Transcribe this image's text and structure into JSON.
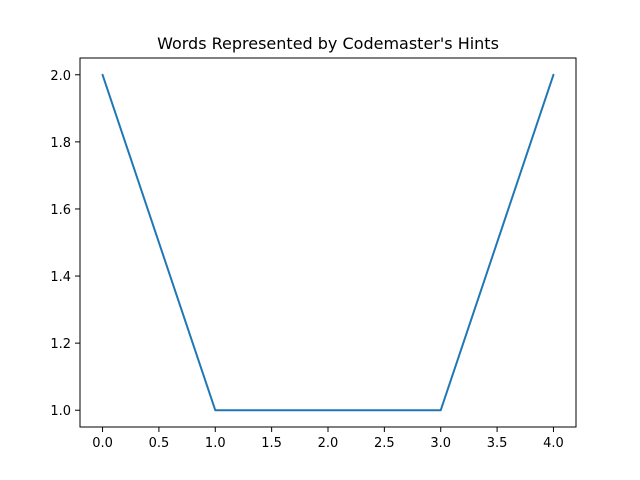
{
  "chart_data": {
    "type": "line",
    "title": "Words Represented by Codemaster's Hints",
    "xlabel": "",
    "ylabel": "",
    "x": [
      0,
      1,
      2,
      3,
      4
    ],
    "series": [
      {
        "values": [
          2,
          1,
          1,
          1,
          2
        ],
        "color": "#1f77b4"
      }
    ],
    "xlim": [
      -0.2,
      4.2
    ],
    "ylim": [
      0.95,
      2.05
    ],
    "xticks": [
      0.0,
      0.5,
      1.0,
      1.5,
      2.0,
      2.5,
      3.0,
      3.5,
      4.0
    ],
    "xtick_labels": [
      "0.0",
      "0.5",
      "1.0",
      "1.5",
      "2.0",
      "2.5",
      "3.0",
      "3.5",
      "4.0"
    ],
    "yticks": [
      1.0,
      1.2,
      1.4,
      1.6,
      1.8,
      2.0
    ],
    "ytick_labels": [
      "1.0",
      "1.2",
      "1.4",
      "1.6",
      "1.8",
      "2.0"
    ],
    "grid": false,
    "legend": "none"
  }
}
